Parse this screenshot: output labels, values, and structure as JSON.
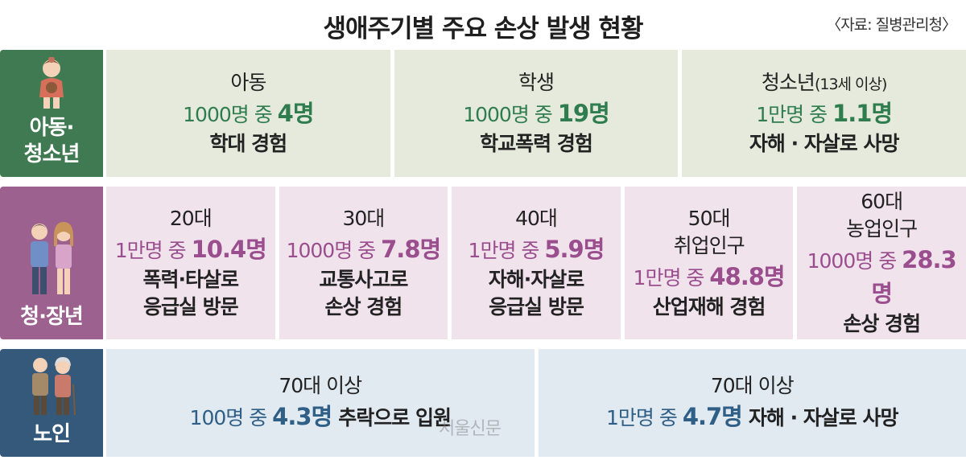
{
  "header": {
    "title": "생애주기별 주요 손상 발생 현황",
    "source": "〈자료: 질병관리청〉"
  },
  "groups": [
    {
      "label": "아동·\n청소년",
      "icon": "child-icon",
      "color": "#3f7a52",
      "cells": [
        {
          "title": "아동",
          "title_small": "",
          "stat_prefix": "1000명 중 ",
          "stat_value": "4명",
          "desc": "학대 경험"
        },
        {
          "title": "학생",
          "title_small": "",
          "stat_prefix": "1000명 중 ",
          "stat_value": "19명",
          "desc": "학교폭력 경험"
        },
        {
          "title": "청소년",
          "title_small": "(13세 이상)",
          "stat_prefix": "1만명 중 ",
          "stat_value": "1.1명",
          "desc": "자해 · 자살로 사망"
        }
      ]
    },
    {
      "label": "청·장년",
      "icon": "couple-icon",
      "color": "#9d6190",
      "cells": [
        {
          "title": "20대",
          "stat_prefix": "1만명 중 ",
          "stat_value": "10.4명",
          "desc1": "폭력·타살로",
          "desc2": "응급실 방문"
        },
        {
          "title": "30대",
          "stat_prefix": "1000명 중 ",
          "stat_value": "7.8명",
          "desc1": "교통사고로",
          "desc2": "손상 경험"
        },
        {
          "title": "40대",
          "stat_prefix": "1만명 중 ",
          "stat_value": "5.9명",
          "desc1": "자해·자살로",
          "desc2": "응급실 방문"
        },
        {
          "title": "50대",
          "title2": "취업인구",
          "stat_prefix": "1만명 중 ",
          "stat_value": "48.8명",
          "desc": "산업재해 경험"
        },
        {
          "title": "60대",
          "title2": "농업인구",
          "stat_prefix": "1000명 중 ",
          "stat_value": "28.3명",
          "desc": "손상 경험"
        }
      ]
    },
    {
      "label": "노인",
      "icon": "elderly-couple-icon",
      "color": "#35597a",
      "cells": [
        {
          "title": "70대 이상",
          "stat_prefix": "100명 중 ",
          "stat_value": "4.3명",
          "desc": "추락으로 입원"
        },
        {
          "title": "70대 이상",
          "stat_prefix": "1만명 중 ",
          "stat_value": "4.7명",
          "desc": "자해 · 자살로 사망"
        }
      ]
    }
  ],
  "watermark": "서울신문"
}
